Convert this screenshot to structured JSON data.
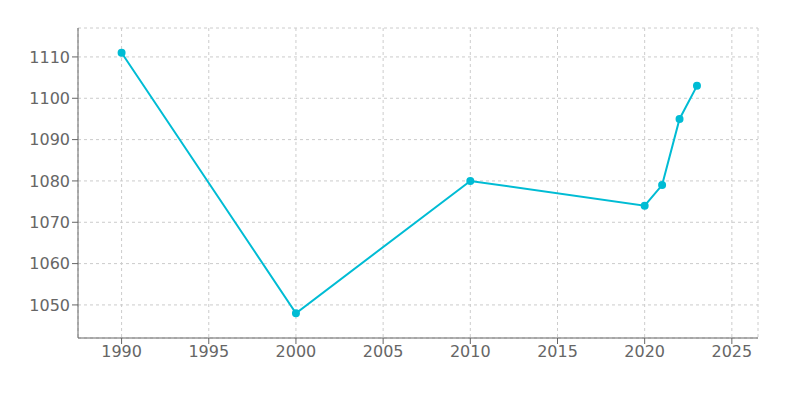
{
  "chart_data": {
    "type": "line",
    "x": [
      1990,
      2000,
      2010,
      2020,
      2021,
      2022,
      2023
    ],
    "values": [
      1111,
      1048,
      1080,
      1074,
      1079,
      1095,
      1103
    ],
    "color": "#00bcd4",
    "marker": "circle",
    "xlim": [
      1987.5,
      2026.5
    ],
    "ylim": [
      1042,
      1117
    ],
    "xticks": [
      1990,
      1995,
      2000,
      2005,
      2010,
      2015,
      2020,
      2025
    ],
    "yticks": [
      1050,
      1060,
      1070,
      1080,
      1090,
      1100,
      1110
    ],
    "grid": true
  }
}
